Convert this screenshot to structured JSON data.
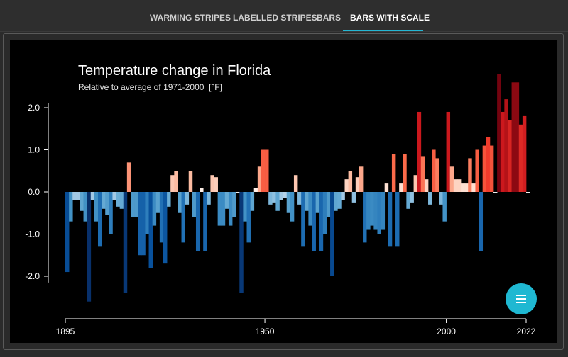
{
  "tabs": [
    {
      "label": "WARMING STRIPES",
      "active": false
    },
    {
      "label": "LABELLED STRIPES",
      "active": false
    },
    {
      "label": "BARS",
      "active": false
    },
    {
      "label": "BARS WITH SCALE",
      "active": true
    }
  ],
  "menu_button": {
    "icon": "menu-icon"
  },
  "chart_data": {
    "type": "bar",
    "title": "Temperature change in Florida",
    "subtitle": "Relative to average of 1971-2000  [°F]",
    "xlabel": "",
    "ylabel": "",
    "ylim": [
      -3.0,
      3.0
    ],
    "y_ticks": [
      2.0,
      1.0,
      0.0,
      -1.0,
      -2.0
    ],
    "y_tick_labels": [
      "2.0",
      "1.0",
      "0.0",
      "-1.0",
      "-2.0"
    ],
    "x_ticks": [
      1895,
      1950,
      2000,
      2022
    ],
    "x_tick_labels": [
      "1895",
      "1950",
      "2000",
      "2022"
    ],
    "grid": false,
    "start_year": 1895,
    "end_year": 2022,
    "values": [
      -1.9,
      -0.7,
      -0.2,
      -0.2,
      -0.45,
      -0.7,
      -2.6,
      -0.2,
      -0.7,
      -1.3,
      -0.4,
      -0.55,
      -1.0,
      -0.2,
      -0.35,
      -0.4,
      -2.4,
      0.7,
      -0.6,
      -0.6,
      -1.5,
      -1.5,
      -1.0,
      -1.8,
      -0.8,
      -0.5,
      -1.2,
      -1.7,
      -0.35,
      0.4,
      0.5,
      -0.5,
      -1.2,
      -0.3,
      0.5,
      -0.6,
      -1.4,
      0.1,
      -1.4,
      -0.3,
      0.4,
      0.35,
      -0.8,
      -0.8,
      -0.4,
      -0.8,
      -0.6,
      0.0,
      -2.4,
      -0.7,
      -1.2,
      -0.45,
      0.1,
      0.6,
      1.0,
      1.0,
      -0.3,
      -0.25,
      -0.45,
      -0.2,
      -0.15,
      -0.5,
      -0.7,
      0.4,
      -0.3,
      -1.3,
      -0.45,
      -0.8,
      -1.4,
      -0.5,
      -1.4,
      -1.0,
      -0.6,
      -2.0,
      -0.45,
      -0.4,
      -0.2,
      0.3,
      0.5,
      -0.25,
      0.35,
      0.6,
      -1.2,
      -0.9,
      -0.8,
      -0.9,
      -1.0,
      -0.9,
      0.2,
      -1.3,
      0.9,
      -1.3,
      0.2,
      0.9,
      -0.4,
      -0.25,
      0.4,
      1.9,
      0.85,
      0.3,
      -0.3,
      1.0,
      0.8,
      -0.3,
      -0.7,
      1.9,
      0.6,
      0.3,
      0.3,
      0.2,
      0.2,
      0.8,
      0.2,
      1.0,
      -1.4,
      1.1,
      1.3,
      1.1,
      0.0,
      2.8,
      1.9,
      2.2,
      1.7,
      2.6,
      2.6,
      1.6,
      1.8,
      0.0
    ]
  }
}
